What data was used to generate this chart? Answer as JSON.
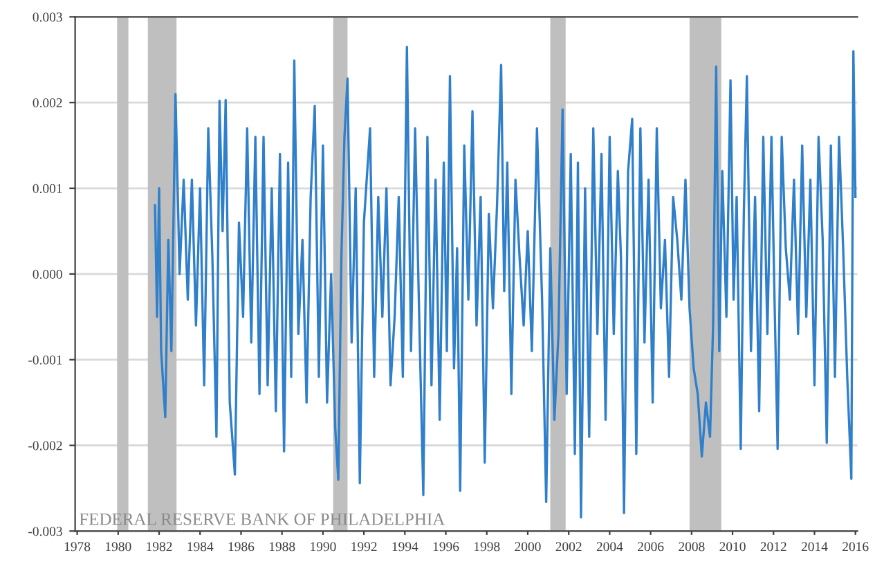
{
  "chart_data": {
    "type": "line",
    "x": [
      1981.8,
      1981.9,
      1982.0,
      1982.1,
      1982.3,
      1982.45,
      1982.6,
      1982.8,
      1983.0,
      1983.2,
      1983.4,
      1983.6,
      1983.8,
      1984.0,
      1984.2,
      1984.4,
      1984.6,
      1984.8,
      1984.95,
      1985.1,
      1985.25,
      1985.45,
      1985.7,
      1985.9,
      1986.1,
      1986.3,
      1986.5,
      1986.7,
      1986.9,
      1987.1,
      1987.3,
      1987.5,
      1987.7,
      1987.9,
      1988.1,
      1988.3,
      1988.45,
      1988.6,
      1988.8,
      1989.0,
      1989.2,
      1989.4,
      1989.6,
      1989.8,
      1990.0,
      1990.2,
      1990.4,
      1990.6,
      1990.75,
      1990.9,
      1991.05,
      1991.2,
      1991.4,
      1991.6,
      1991.8,
      1992.0,
      1992.3,
      1992.5,
      1992.7,
      1992.9,
      1993.1,
      1993.3,
      1993.5,
      1993.7,
      1993.9,
      1994.1,
      1994.3,
      1994.5,
      1994.7,
      1994.9,
      1995.1,
      1995.3,
      1995.5,
      1995.7,
      1995.9,
      1996.05,
      1996.2,
      1996.4,
      1996.55,
      1996.7,
      1996.9,
      1997.1,
      1997.3,
      1997.5,
      1997.7,
      1997.9,
      1998.1,
      1998.3,
      1998.5,
      1998.7,
      1998.85,
      1999.0,
      1999.2,
      1999.4,
      1999.6,
      1999.8,
      2000.0,
      2000.2,
      2000.45,
      2000.7,
      2000.9,
      2001.1,
      2001.3,
      2001.5,
      2001.7,
      2001.9,
      2002.1,
      2002.3,
      2002.45,
      2002.6,
      2002.8,
      2003.0,
      2003.2,
      2003.4,
      2003.6,
      2003.8,
      2004.0,
      2004.2,
      2004.4,
      2004.55,
      2004.7,
      2004.9,
      2005.1,
      2005.3,
      2005.5,
      2005.7,
      2005.9,
      2006.1,
      2006.3,
      2006.5,
      2006.7,
      2006.9,
      2007.1,
      2007.3,
      2007.5,
      2007.7,
      2007.9,
      2008.1,
      2008.3,
      2008.5,
      2008.7,
      2008.9,
      2009.05,
      2009.2,
      2009.35,
      2009.5,
      2009.7,
      2009.9,
      2010.05,
      2010.2,
      2010.4,
      2010.55,
      2010.7,
      2010.9,
      2011.1,
      2011.3,
      2011.5,
      2011.7,
      2011.9,
      2012.05,
      2012.2,
      2012.4,
      2012.6,
      2012.8,
      2013.0,
      2013.2,
      2013.4,
      2013.6,
      2013.8,
      2014.0,
      2014.2,
      2014.4,
      2014.6,
      2014.8,
      2015.0,
      2015.2,
      2015.4,
      2015.6,
      2015.8,
      2015.9,
      2016.0
    ],
    "series": [
      {
        "color": "#2f7fca",
        "values": [
          0.0008,
          -0.0005,
          0.001,
          -0.0009,
          -0.00167,
          0.0004,
          -0.0009,
          0.0021,
          0.0,
          0.0011,
          -0.0003,
          0.0011,
          -0.0006,
          0.001,
          -0.0013,
          0.0017,
          0.0002,
          -0.0019,
          0.00202,
          0.0005,
          0.00203,
          -0.0015,
          -0.00234,
          0.0006,
          -0.0005,
          0.0017,
          -0.0008,
          0.0016,
          -0.0014,
          0.0016,
          -0.0013,
          0.001,
          -0.0016,
          0.0014,
          -0.00207,
          0.0013,
          -0.0012,
          0.00249,
          -0.0007,
          0.0004,
          -0.0015,
          0.0009,
          0.00196,
          -0.0012,
          0.0015,
          -0.0015,
          0.0,
          -0.0018,
          -0.0024,
          0.0002,
          0.0016,
          0.00228,
          -0.0008,
          0.001,
          -0.00244,
          0.0006,
          0.0017,
          -0.0012,
          0.0009,
          -0.0005,
          0.001,
          -0.0013,
          -0.0005,
          0.0009,
          -0.0012,
          0.00265,
          -0.0009,
          0.0017,
          -0.0005,
          -0.00258,
          0.0016,
          -0.0013,
          0.0011,
          -0.0017,
          0.0013,
          -0.0009,
          0.00231,
          -0.0011,
          0.0003,
          -0.00253,
          0.0015,
          -0.0003,
          0.0019,
          -0.0006,
          0.0009,
          -0.0022,
          0.0007,
          -0.0004,
          0.0008,
          0.00244,
          -0.0002,
          0.0013,
          -0.0014,
          0.0011,
          0.0002,
          -0.0006,
          0.0005,
          -0.0009,
          0.0017,
          -0.0003,
          -0.00266,
          0.0003,
          -0.0017,
          -0.0007,
          0.00192,
          -0.0014,
          0.0014,
          -0.0021,
          0.0013,
          -0.00284,
          0.001,
          -0.0019,
          0.0017,
          -0.0007,
          0.0014,
          -0.0017,
          0.0016,
          -0.0007,
          0.0012,
          0.0002,
          -0.00279,
          0.0012,
          0.00181,
          -0.0021,
          0.0017,
          -0.0008,
          0.0011,
          -0.0015,
          0.0017,
          -0.0004,
          0.0004,
          -0.0012,
          0.0009,
          0.0004,
          -0.0003,
          0.0011,
          -0.0004,
          -0.0011,
          -0.0014,
          -0.00213,
          -0.0015,
          -0.0019,
          -0.0006,
          0.00242,
          -0.0009,
          0.0012,
          -0.0005,
          0.00226,
          -0.0003,
          0.0009,
          -0.00204,
          0.0007,
          0.00231,
          -0.0009,
          0.0009,
          -0.0016,
          0.0016,
          -0.0007,
          0.0016,
          -0.0003,
          -0.00204,
          0.0016,
          0.0003,
          -0.0003,
          0.0011,
          -0.0007,
          0.0015,
          -0.0005,
          0.0011,
          -0.0013,
          0.0016,
          0.0004,
          -0.00197,
          0.0015,
          -0.0012,
          0.0016,
          0.0003,
          -0.0012,
          -0.00239,
          0.0026,
          0.0009
        ]
      }
    ],
    "xlim": [
      1977.9,
      2016.1
    ],
    "xticks": [
      1978,
      1980,
      1982,
      1984,
      1986,
      1988,
      1990,
      1992,
      1994,
      1996,
      1998,
      2000,
      2002,
      2004,
      2006,
      2008,
      2010,
      2012,
      2014,
      2016
    ],
    "ylim": [
      -0.003,
      0.003
    ],
    "yticks": [
      {
        "value": -0.003,
        "label": "-0.003"
      },
      {
        "value": -0.002,
        "label": "-0.002"
      },
      {
        "value": -0.001,
        "label": "-0.001"
      },
      {
        "value": 0.0,
        "label": "0.000"
      },
      {
        "value": 0.001,
        "label": "0.001"
      },
      {
        "value": 0.002,
        "label": "0.002"
      },
      {
        "value": 0.003,
        "label": "0.003"
      }
    ],
    "bands": [
      {
        "axis": "x",
        "from": 1979.95,
        "to": 1980.5,
        "color": "#bfbfbf"
      },
      {
        "axis": "x",
        "from": 1981.45,
        "to": 1982.85,
        "color": "#bfbfbf"
      },
      {
        "axis": "x",
        "from": 1990.5,
        "to": 1991.2,
        "color": "#bfbfbf"
      },
      {
        "axis": "x",
        "from": 2001.1,
        "to": 2001.85,
        "color": "#bfbfbf"
      },
      {
        "axis": "x",
        "from": 2007.9,
        "to": 2009.45,
        "color": "#bfbfbf"
      }
    ],
    "grid": "y",
    "line_style": "solid",
    "marker": "none",
    "legend": false,
    "annotations": [
      "FEDERAL RESERVE BANK OF PHILADELPHIA"
    ]
  }
}
